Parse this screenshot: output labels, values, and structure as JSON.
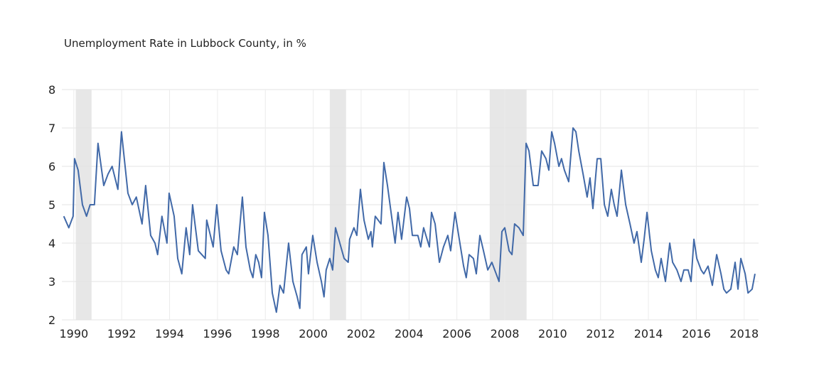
{
  "chart_data": {
    "type": "line",
    "title": "Unemployment Rate in Lubbock County, in %",
    "color": "#4169a8",
    "grid": true,
    "shade_color": "#e7e7e7",
    "recessions": [
      [
        1990.08,
        1990.74
      ],
      [
        2000.69,
        2001.37
      ],
      [
        2007.37,
        2008.91
      ]
    ],
    "xlim": [
      1989.5,
      2018.6
    ],
    "xticks": [
      1990,
      1992,
      1994,
      1996,
      1998,
      2000,
      2002,
      2004,
      2006,
      2008,
      2010,
      2012,
      2014,
      2016,
      2018
    ],
    "ylim": [
      2,
      8
    ],
    "yticks": [
      2,
      3,
      4,
      5,
      6,
      7,
      8
    ],
    "x": [
      1989.58,
      1989.79,
      1989.97,
      1990.03,
      1990.18,
      1990.36,
      1990.53,
      1990.68,
      1990.86,
      1991.01,
      1991.25,
      1991.43,
      1991.6,
      1991.84,
      1991.99,
      1992.26,
      1992.44,
      1992.61,
      1992.85,
      1993.0,
      1993.21,
      1993.39,
      1993.5,
      1993.68,
      1993.89,
      1993.98,
      1994.19,
      1994.34,
      1994.51,
      1994.69,
      1994.84,
      1994.96,
      1995.2,
      1995.49,
      1995.55,
      1995.82,
      1995.97,
      1996.15,
      1996.36,
      1996.47,
      1996.68,
      1996.83,
      1997.04,
      1997.19,
      1997.37,
      1997.48,
      1997.6,
      1997.72,
      1997.84,
      1997.96,
      1998.11,
      1998.29,
      1998.46,
      1998.61,
      1998.76,
      1998.97,
      1999.15,
      1999.33,
      1999.44,
      1999.53,
      1999.71,
      1999.8,
      1999.98,
      2000.16,
      2000.34,
      2000.45,
      2000.54,
      2000.69,
      2000.81,
      2000.93,
      2001.11,
      2001.29,
      2001.46,
      2001.52,
      2001.7,
      2001.82,
      2001.97,
      2002.12,
      2002.3,
      2002.41,
      2002.47,
      2002.59,
      2002.83,
      2002.95,
      2003.1,
      2003.25,
      2003.42,
      2003.54,
      2003.69,
      2003.9,
      2004.02,
      2004.14,
      2004.37,
      2004.49,
      2004.61,
      2004.85,
      2004.94,
      2005.09,
      2005.27,
      2005.44,
      2005.62,
      2005.74,
      2005.92,
      2006.1,
      2006.28,
      2006.39,
      2006.51,
      2006.69,
      2006.81,
      2006.96,
      2007.11,
      2007.29,
      2007.46,
      2007.64,
      2007.76,
      2007.88,
      2008.0,
      2008.18,
      2008.3,
      2008.41,
      2008.59,
      2008.77,
      2008.89,
      2009.01,
      2009.19,
      2009.39,
      2009.54,
      2009.72,
      2009.84,
      2009.96,
      2010.08,
      2010.26,
      2010.37,
      2010.49,
      2010.67,
      2010.85,
      2010.97,
      2011.09,
      2011.27,
      2011.44,
      2011.56,
      2011.68,
      2011.86,
      2012.01,
      2012.16,
      2012.3,
      2012.45,
      2012.57,
      2012.69,
      2012.87,
      2013.05,
      2013.23,
      2013.4,
      2013.52,
      2013.7,
      2013.82,
      2013.94,
      2014.12,
      2014.29,
      2014.41,
      2014.53,
      2014.71,
      2014.89,
      2015.01,
      2015.19,
      2015.36,
      2015.48,
      2015.66,
      2015.78,
      2015.9,
      2016.02,
      2016.2,
      2016.31,
      2016.49,
      2016.67,
      2016.85,
      2017.03,
      2017.15,
      2017.26,
      2017.44,
      2017.62,
      2017.74,
      2017.86,
      2018.04,
      2018.16,
      2018.33,
      2018.45
    ],
    "values": [
      4.7,
      4.4,
      4.7,
      6.2,
      5.9,
      5.0,
      4.7,
      5.0,
      5.0,
      6.6,
      5.5,
      5.8,
      6.0,
      5.4,
      6.9,
      5.3,
      5.0,
      5.2,
      4.5,
      5.5,
      4.2,
      4.0,
      3.7,
      4.7,
      4.0,
      5.3,
      4.7,
      3.6,
      3.2,
      4.4,
      3.7,
      5.0,
      3.8,
      3.6,
      4.6,
      3.9,
      5.0,
      3.8,
      3.3,
      3.2,
      3.9,
      3.7,
      5.2,
      3.9,
      3.3,
      3.1,
      3.7,
      3.5,
      3.1,
      4.8,
      4.2,
      2.7,
      2.2,
      2.9,
      2.7,
      4.0,
      3.0,
      2.6,
      2.3,
      3.7,
      3.9,
      3.2,
      4.2,
      3.5,
      3.0,
      2.6,
      3.3,
      3.6,
      3.3,
      4.4,
      4.0,
      3.6,
      3.5,
      4.1,
      4.4,
      4.2,
      5.4,
      4.6,
      4.1,
      4.3,
      3.9,
      4.7,
      4.5,
      6.1,
      5.5,
      4.8,
      4.0,
      4.8,
      4.1,
      5.2,
      4.9,
      4.2,
      4.2,
      3.9,
      4.4,
      3.9,
      4.8,
      4.5,
      3.5,
      3.9,
      4.2,
      3.8,
      4.8,
      4.1,
      3.4,
      3.1,
      3.7,
      3.6,
      3.2,
      4.2,
      3.8,
      3.3,
      3.5,
      3.2,
      3.0,
      4.3,
      4.4,
      3.8,
      3.7,
      4.5,
      4.4,
      4.2,
      6.6,
      6.4,
      5.5,
      5.5,
      6.4,
      6.2,
      5.9,
      6.9,
      6.6,
      6.0,
      6.2,
      5.9,
      5.6,
      7.0,
      6.9,
      6.4,
      5.8,
      5.2,
      5.7,
      4.9,
      6.2,
      6.2,
      5.0,
      4.7,
      5.4,
      5.0,
      4.7,
      5.9,
      5.0,
      4.5,
      4.0,
      4.3,
      3.5,
      4.1,
      4.8,
      3.8,
      3.3,
      3.1,
      3.6,
      3.0,
      4.0,
      3.5,
      3.3,
      3.0,
      3.3,
      3.3,
      3.0,
      4.1,
      3.6,
      3.3,
      3.2,
      3.4,
      2.9,
      3.7,
      3.2,
      2.8,
      2.7,
      2.8,
      3.5,
      2.8,
      3.6,
      3.2,
      2.7,
      2.8,
      3.2
    ]
  }
}
